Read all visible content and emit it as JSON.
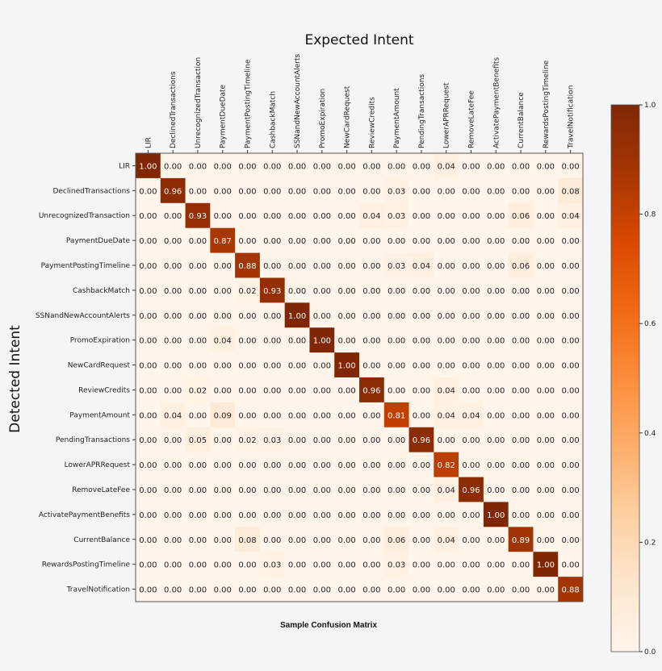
{
  "chart_data": {
    "type": "heatmap",
    "title": "Sample Confusion Matrix",
    "xlabel": "Expected Intent",
    "ylabel": "Detected Intent",
    "x_categories": [
      "LIR",
      "DeclinedTransactions",
      "UnrecognizedTransaction",
      "PaymentDueDate",
      "PaymentPostingTimeline",
      "CashbackMatch",
      "SSNandNewAccountAlerts",
      "PromoExpiration",
      "NewCardRequest",
      "ReviewCredits",
      "PaymentAmount",
      "PendingTransactions",
      "LowerAPRRequest",
      "RemoveLateFee",
      "ActivatePaymentBenefits",
      "CurrentBalance",
      "RewardsPostingTimeline",
      "TravelNotification"
    ],
    "y_categories": [
      "LIR",
      "DeclinedTransactions",
      "UnrecognizedTransaction",
      "PaymentDueDate",
      "PaymentPostingTimeline",
      "CashbackMatch",
      "SSNandNewAccountAlerts",
      "PromoExpiration",
      "NewCardRequest",
      "ReviewCredits",
      "PaymentAmount",
      "PendingTransactions",
      "LowerAPRRequest",
      "RemoveLateFee",
      "ActivatePaymentBenefits",
      "CurrentBalance",
      "RewardsPostingTimeline",
      "TravelNotification"
    ],
    "values": [
      [
        1.0,
        0,
        0,
        0,
        0,
        0,
        0,
        0,
        0,
        0,
        0,
        0,
        0.04,
        0,
        0,
        0,
        0,
        0
      ],
      [
        0,
        0.96,
        0,
        0,
        0,
        0,
        0,
        0,
        0,
        0,
        0.03,
        0,
        0,
        0,
        0,
        0,
        0,
        0.08
      ],
      [
        0,
        0,
        0.93,
        0,
        0,
        0,
        0,
        0,
        0,
        0.04,
        0.03,
        0,
        0,
        0,
        0,
        0.06,
        0,
        0.04
      ],
      [
        0,
        0,
        0,
        0.87,
        0,
        0,
        0,
        0,
        0,
        0,
        0,
        0,
        0,
        0,
        0,
        0,
        0,
        0
      ],
      [
        0,
        0,
        0,
        0,
        0.88,
        0,
        0,
        0,
        0,
        0,
        0.03,
        0.04,
        0,
        0,
        0,
        0.06,
        0,
        0
      ],
      [
        0,
        0,
        0,
        0,
        0.02,
        0.93,
        0,
        0,
        0,
        0,
        0,
        0,
        0,
        0,
        0,
        0,
        0,
        0
      ],
      [
        0,
        0,
        0,
        0,
        0,
        0,
        1.0,
        0,
        0,
        0,
        0,
        0,
        0,
        0,
        0,
        0,
        0,
        0
      ],
      [
        0,
        0,
        0,
        0.04,
        0,
        0,
        0,
        1.0,
        0,
        0,
        0,
        0,
        0,
        0,
        0,
        0,
        0,
        0
      ],
      [
        0,
        0,
        0,
        0,
        0,
        0,
        0,
        0,
        1.0,
        0,
        0,
        0,
        0,
        0,
        0,
        0,
        0,
        0
      ],
      [
        0,
        0,
        0.02,
        0,
        0,
        0,
        0,
        0,
        0,
        0.96,
        0,
        0,
        0.04,
        0,
        0,
        0,
        0,
        0
      ],
      [
        0,
        0.04,
        0,
        0.09,
        0,
        0,
        0,
        0,
        0,
        0,
        0.81,
        0,
        0.04,
        0.04,
        0,
        0,
        0,
        0
      ],
      [
        0,
        0,
        0.05,
        0,
        0.02,
        0.03,
        0,
        0,
        0,
        0,
        0,
        0.96,
        0,
        0,
        0,
        0,
        0,
        0
      ],
      [
        0,
        0,
        0,
        0,
        0,
        0,
        0,
        0,
        0,
        0,
        0,
        0,
        0.82,
        0,
        0,
        0,
        0,
        0
      ],
      [
        0,
        0,
        0,
        0,
        0,
        0,
        0,
        0,
        0,
        0,
        0,
        0,
        0.04,
        0.96,
        0,
        0,
        0,
        0
      ],
      [
        0,
        0,
        0,
        0,
        0,
        0,
        0,
        0,
        0,
        0,
        0,
        0,
        0,
        0,
        1.0,
        0,
        0,
        0
      ],
      [
        0,
        0,
        0,
        0,
        0.08,
        0,
        0,
        0,
        0,
        0,
        0.06,
        0,
        0.04,
        0,
        0,
        0.89,
        0,
        0
      ],
      [
        0,
        0,
        0,
        0,
        0,
        0.03,
        0,
        0,
        0,
        0,
        0.03,
        0,
        0,
        0,
        0,
        0,
        1.0,
        0
      ],
      [
        0,
        0,
        0,
        0,
        0,
        0,
        0,
        0,
        0,
        0,
        0,
        0,
        0,
        0,
        0,
        0,
        0,
        0.88
      ]
    ],
    "value_format": "0.00",
    "colormap": "Oranges",
    "colorbar": {
      "range": [
        0.0,
        1.0
      ],
      "ticks": [
        "0.0",
        "0.2",
        "0.4",
        "0.6",
        "0.8",
        "1.0"
      ]
    },
    "grid": false
  }
}
